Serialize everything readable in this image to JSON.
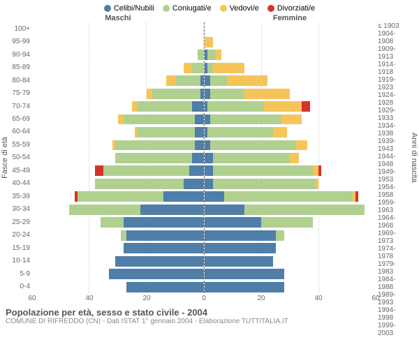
{
  "legend": [
    {
      "label": "Celibi/Nubili",
      "color": "#4f7ea8"
    },
    {
      "label": "Coniugati/e",
      "color": "#b0d090"
    },
    {
      "label": "Vedovi/e",
      "color": "#f6c55a"
    },
    {
      "label": "Divorziati/e",
      "color": "#d4342b"
    }
  ],
  "header": {
    "male": "Maschi",
    "female": "Femmine"
  },
  "axis_labels": {
    "left": "Fasce di età",
    "right": "Anni di nascita"
  },
  "xticks": [
    60,
    40,
    20,
    0,
    20,
    40,
    60
  ],
  "xmax": 60,
  "title": "Popolazione per età, sesso e stato civile - 2004",
  "subtitle": "COMUNE DI RIFREDDO (CN) - Dati ISTAT 1° gennaio 2004 - Elaborazione TUTTITALIA.IT",
  "colors": {
    "single": "#4f7ea8",
    "married": "#b0d090",
    "widowed": "#f6c55a",
    "divorced": "#d4342b",
    "grid": "#cccccc",
    "centerline": "#888888",
    "background": "#ffffff",
    "text_muted": "#666666"
  },
  "rows": [
    {
      "age": "100+",
      "birth": "≤ 1903",
      "m": {
        "s": 0,
        "c": 0,
        "w": 0,
        "d": 0
      },
      "f": {
        "s": 0,
        "c": 0,
        "w": 0,
        "d": 0
      }
    },
    {
      "age": "95-99",
      "birth": "1904-1908",
      "m": {
        "s": 0,
        "c": 0,
        "w": 0,
        "d": 0
      },
      "f": {
        "s": 0,
        "c": 0,
        "w": 3,
        "d": 0
      }
    },
    {
      "age": "90-94",
      "birth": "1909-1913",
      "m": {
        "s": 0,
        "c": 2,
        "w": 0,
        "d": 0
      },
      "f": {
        "s": 1,
        "c": 3,
        "w": 2,
        "d": 0
      }
    },
    {
      "age": "85-89",
      "birth": "1914-1918",
      "m": {
        "s": 0,
        "c": 4,
        "w": 3,
        "d": 0
      },
      "f": {
        "s": 1,
        "c": 2,
        "w": 11,
        "d": 0
      }
    },
    {
      "age": "80-84",
      "birth": "1919-1923",
      "m": {
        "s": 1,
        "c": 9,
        "w": 3,
        "d": 0
      },
      "f": {
        "s": 2,
        "c": 6,
        "w": 14,
        "d": 0
      }
    },
    {
      "age": "75-79",
      "birth": "1924-1928",
      "m": {
        "s": 1,
        "c": 17,
        "w": 2,
        "d": 0
      },
      "f": {
        "s": 2,
        "c": 12,
        "w": 16,
        "d": 0
      }
    },
    {
      "age": "70-74",
      "birth": "1929-1933",
      "m": {
        "s": 4,
        "c": 19,
        "w": 2,
        "d": 0
      },
      "f": {
        "s": 1,
        "c": 20,
        "w": 13,
        "d": 3
      }
    },
    {
      "age": "65-69",
      "birth": "1934-1938",
      "m": {
        "s": 3,
        "c": 25,
        "w": 2,
        "d": 0
      },
      "f": {
        "s": 2,
        "c": 25,
        "w": 7,
        "d": 0
      }
    },
    {
      "age": "60-64",
      "birth": "1939-1943",
      "m": {
        "s": 3,
        "c": 20,
        "w": 1,
        "d": 0
      },
      "f": {
        "s": 1,
        "c": 23,
        "w": 5,
        "d": 0
      }
    },
    {
      "age": "55-59",
      "birth": "1944-1948",
      "m": {
        "s": 3,
        "c": 28,
        "w": 1,
        "d": 0
      },
      "f": {
        "s": 2,
        "c": 30,
        "w": 4,
        "d": 0
      }
    },
    {
      "age": "50-54",
      "birth": "1949-1953",
      "m": {
        "s": 4,
        "c": 27,
        "w": 0,
        "d": 0
      },
      "f": {
        "s": 3,
        "c": 27,
        "w": 3,
        "d": 0
      }
    },
    {
      "age": "45-49",
      "birth": "1954-1958",
      "m": {
        "s": 5,
        "c": 30,
        "w": 0,
        "d": 3
      },
      "f": {
        "s": 3,
        "c": 35,
        "w": 2,
        "d": 1
      }
    },
    {
      "age": "40-44",
      "birth": "1959-1963",
      "m": {
        "s": 7,
        "c": 31,
        "w": 0,
        "d": 0
      },
      "f": {
        "s": 3,
        "c": 36,
        "w": 1,
        "d": 0
      }
    },
    {
      "age": "35-39",
      "birth": "1964-1968",
      "m": {
        "s": 14,
        "c": 30,
        "w": 0,
        "d": 1
      },
      "f": {
        "s": 7,
        "c": 45,
        "w": 1,
        "d": 1
      }
    },
    {
      "age": "30-34",
      "birth": "1969-1973",
      "m": {
        "s": 22,
        "c": 25,
        "w": 0,
        "d": 0
      },
      "f": {
        "s": 14,
        "c": 42,
        "w": 0,
        "d": 0
      }
    },
    {
      "age": "25-29",
      "birth": "1974-1978",
      "m": {
        "s": 28,
        "c": 8,
        "w": 0,
        "d": 0
      },
      "f": {
        "s": 20,
        "c": 18,
        "w": 0,
        "d": 0
      }
    },
    {
      "age": "20-24",
      "birth": "1979-1983",
      "m": {
        "s": 27,
        "c": 2,
        "w": 0,
        "d": 0
      },
      "f": {
        "s": 25,
        "c": 3,
        "w": 0,
        "d": 0
      }
    },
    {
      "age": "15-19",
      "birth": "1984-1988",
      "m": {
        "s": 28,
        "c": 0,
        "w": 0,
        "d": 0
      },
      "f": {
        "s": 25,
        "c": 0,
        "w": 0,
        "d": 0
      }
    },
    {
      "age": "10-14",
      "birth": "1989-1993",
      "m": {
        "s": 31,
        "c": 0,
        "w": 0,
        "d": 0
      },
      "f": {
        "s": 24,
        "c": 0,
        "w": 0,
        "d": 0
      }
    },
    {
      "age": "5-9",
      "birth": "1994-1998",
      "m": {
        "s": 33,
        "c": 0,
        "w": 0,
        "d": 0
      },
      "f": {
        "s": 28,
        "c": 0,
        "w": 0,
        "d": 0
      }
    },
    {
      "age": "0-4",
      "birth": "1999-2003",
      "m": {
        "s": 27,
        "c": 0,
        "w": 0,
        "d": 0
      },
      "f": {
        "s": 28,
        "c": 0,
        "w": 0,
        "d": 0
      }
    }
  ]
}
